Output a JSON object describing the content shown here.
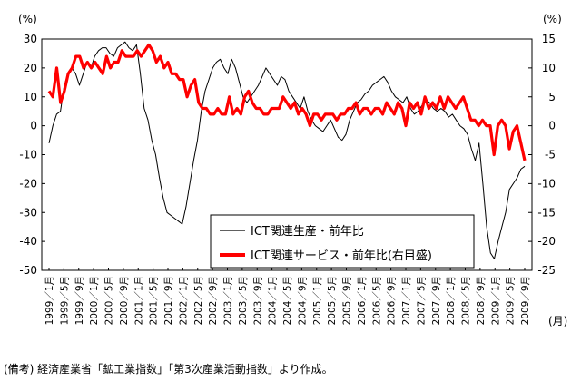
{
  "chart_data": {
    "type": "line",
    "left_axis": {
      "unit": "(%)",
      "ylim": [
        -50,
        30
      ],
      "ticks": [
        -50,
        -40,
        -30,
        -20,
        -10,
        0,
        10,
        20,
        30
      ]
    },
    "right_axis": {
      "unit": "(%)",
      "ylim": [
        -25,
        15
      ],
      "ticks": [
        -25,
        -20,
        -15,
        -10,
        -5,
        0,
        5,
        10,
        15
      ]
    },
    "x_unit_label": "(月)",
    "x_tick_labels": [
      "1999／1月",
      "1999／5月",
      "1999／9月",
      "2000／1月",
      "2000／5月",
      "2000／9月",
      "2001／1月",
      "2001／5月",
      "2001／9月",
      "2002／1月",
      "2002／5月",
      "2002／9月",
      "2003／1月",
      "2003／5月",
      "2003／9月",
      "2004／1月",
      "2004／5月",
      "2004／9月",
      "2005／1月",
      "2005／5月",
      "2005／9月",
      "2006／1月",
      "2006／5月",
      "2006／9月",
      "2007／1月",
      "2007／5月",
      "2007／9月",
      "2008／1月",
      "2008／5月",
      "2008／9月",
      "2009／1月",
      "2009／5月",
      "2009／9月"
    ],
    "legend_position": "inside-lower-middle",
    "series": [
      {
        "name": "ICT関連生産・前年比",
        "axis": "left",
        "color": "#000000",
        "values": [
          -6,
          0,
          4,
          5,
          14,
          18,
          20,
          18,
          14,
          18,
          22,
          20,
          24,
          26,
          27,
          27,
          25,
          24,
          27,
          28,
          29,
          27,
          26,
          28,
          18,
          6,
          2,
          -5,
          -10,
          -18,
          -25,
          -30,
          -31,
          -32,
          -33,
          -34,
          -28,
          -20,
          -12,
          -5,
          5,
          12,
          16,
          20,
          22,
          23,
          20,
          18,
          23,
          20,
          15,
          10,
          8,
          10,
          12,
          14,
          17,
          20,
          18,
          16,
          14,
          17,
          16,
          12,
          10,
          8,
          6,
          10,
          5,
          2,
          0,
          -1,
          -2,
          0,
          2,
          -1,
          -4,
          -5,
          -3,
          2,
          5,
          8,
          9,
          11,
          12,
          14,
          15,
          16,
          17,
          15,
          12,
          10,
          9,
          8,
          10,
          6,
          4,
          5,
          7,
          9,
          8,
          6,
          5,
          6,
          5,
          3,
          4,
          2,
          0,
          -1,
          -3,
          -8,
          -12,
          -6,
          -20,
          -35,
          -44,
          -46,
          -40,
          -35,
          -30,
          -22,
          -20,
          -18,
          -15,
          -14
        ]
      },
      {
        "name": "ICT関連サービス・前年比(右目盛)",
        "axis": "right",
        "color": "#ff0000",
        "values": [
          6,
          5,
          10,
          4,
          6,
          9,
          10,
          12,
          12,
          10,
          11,
          10,
          11,
          10,
          9,
          12,
          10,
          11,
          11,
          13,
          12,
          12,
          12,
          13,
          12,
          13,
          14,
          13,
          11,
          12,
          10,
          11,
          9,
          9,
          8,
          8,
          5,
          7,
          8,
          4,
          3,
          3,
          2,
          2,
          3,
          2,
          2,
          5,
          2,
          3,
          2,
          5,
          6,
          4,
          3,
          3,
          2,
          2,
          3,
          3,
          3,
          5,
          4,
          3,
          4,
          2,
          3,
          2,
          0,
          2,
          2,
          1,
          2,
          2,
          2,
          1,
          2,
          2,
          3,
          3,
          4,
          2,
          3,
          3,
          2,
          3,
          3,
          2,
          4,
          3,
          2,
          4,
          3,
          0,
          4,
          3,
          4,
          2,
          5,
          3,
          4,
          3,
          5,
          3,
          5,
          4,
          3,
          4,
          5,
          3,
          1,
          1,
          0,
          1,
          0,
          0,
          -5,
          0,
          1,
          0,
          -4,
          -1,
          0,
          -3,
          -6
        ]
      }
    ]
  },
  "note": "(備考) 経済産業省「鉱工業指数」「第3次産業活動指数」より作成。"
}
